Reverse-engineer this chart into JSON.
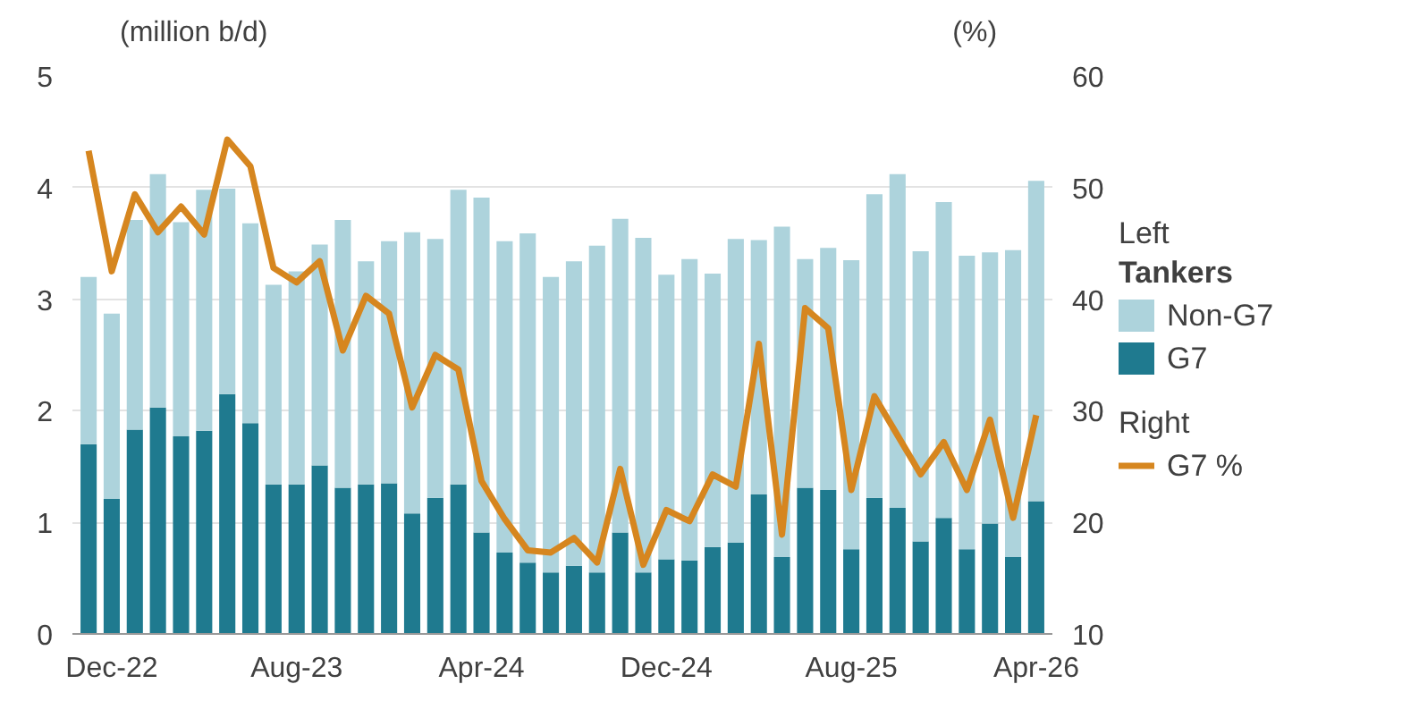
{
  "chart_data": {
    "type": "bar",
    "stacked": true,
    "categories": [
      null,
      "Dec-22",
      null,
      null,
      null,
      null,
      null,
      null,
      null,
      "Aug-23",
      null,
      null,
      null,
      null,
      null,
      null,
      null,
      "Apr-24",
      null,
      null,
      null,
      null,
      null,
      null,
      null,
      "Dec-24",
      null,
      null,
      null,
      null,
      null,
      null,
      null,
      "Aug-25",
      null,
      null,
      null,
      null,
      null,
      null,
      null,
      "Apr-26"
    ],
    "series": [
      {
        "name": "G7",
        "color": "#1f7a8f",
        "values": [
          1.7,
          1.21,
          1.83,
          2.03,
          1.77,
          1.82,
          2.15,
          1.89,
          1.34,
          1.34,
          1.51,
          1.31,
          1.34,
          1.35,
          1.08,
          1.22,
          1.34,
          0.91,
          0.73,
          0.64,
          0.55,
          0.61,
          0.55,
          0.91,
          0.55,
          0.67,
          0.66,
          0.78,
          0.82,
          1.25,
          0.69,
          1.31,
          1.29,
          0.76,
          1.22,
          1.13,
          0.83,
          1.04,
          0.76,
          0.99,
          0.69,
          1.19
        ]
      },
      {
        "name": "Non-G7",
        "color": "#add3dc",
        "values": [
          1.5,
          1.66,
          1.88,
          2.09,
          1.92,
          2.16,
          1.84,
          1.79,
          1.79,
          1.91,
          1.98,
          2.4,
          2.0,
          2.17,
          2.52,
          2.32,
          2.64,
          3.0,
          2.79,
          2.95,
          2.65,
          2.73,
          2.93,
          2.81,
          3.0,
          2.55,
          2.7,
          2.45,
          2.72,
          2.28,
          2.96,
          2.05,
          2.17,
          2.59,
          2.72,
          2.99,
          2.6,
          2.83,
          2.63,
          2.43,
          2.75,
          2.87
        ]
      },
      {
        "name": "G7 %",
        "type": "line",
        "axis": "y2",
        "color": "#d6861f",
        "values": [
          53.3,
          42.5,
          49.4,
          46.0,
          48.3,
          45.8,
          54.3,
          51.9,
          42.8,
          41.5,
          43.4,
          35.4,
          40.3,
          38.7,
          30.3,
          35.0,
          33.7,
          23.7,
          20.3,
          17.5,
          17.3,
          18.6,
          16.4,
          24.8,
          16.2,
          21.1,
          20.1,
          24.3,
          23.2,
          36.0,
          18.9,
          39.2,
          37.4,
          22.9,
          31.3,
          27.8,
          24.3,
          27.2,
          22.9,
          29.2,
          20.4,
          29.6
        ]
      }
    ],
    "ylabel": "(million b/d)",
    "y2label": "(%)",
    "ylim": [
      0,
      5
    ],
    "yticks": [
      0,
      1,
      2,
      3,
      4,
      5
    ],
    "y2lim": [
      10,
      60
    ],
    "y2ticks": [
      10,
      20,
      30,
      40,
      50,
      60
    ],
    "grid": "y",
    "legend": "right",
    "legend_title": "Tankers",
    "annotations": [
      "Left",
      "Right"
    ]
  }
}
